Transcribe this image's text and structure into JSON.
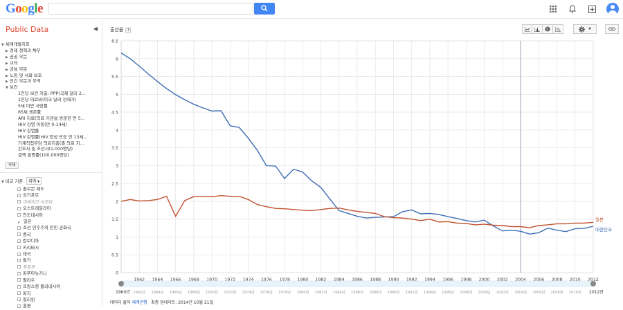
{
  "header": {
    "search_value": "",
    "logo_letters": [
      {
        "ch": "G",
        "color": "#4285f4"
      },
      {
        "ch": "o",
        "color": "#ea4335"
      },
      {
        "ch": "o",
        "color": "#fbbc05"
      },
      {
        "ch": "g",
        "color": "#4285f4"
      },
      {
        "ch": "l",
        "color": "#34a853"
      },
      {
        "ch": "e",
        "color": "#ea4335"
      }
    ],
    "icons": [
      "apps-icon",
      "notifications-icon",
      "share-plus-icon",
      "account-avatar-icon"
    ]
  },
  "sidebar": {
    "title": "Public Data",
    "root": "세계개발지표",
    "categories": [
      "경제 정책과 채무",
      "공공 부문",
      "교육",
      "금융 부문",
      "노동 및 사회 보호",
      "민간 부문과 무역",
      "보건"
    ],
    "indicators": [
      "1인당 보건 지출: PPP(국제 달러 2...",
      "1인당 의료비(미국 달러 현재가)",
      "5세 미만 사망률",
      "65세 생존률",
      "ARI 치료(의료 기관을 방문한 만 5...",
      "HIV 감염 아동(만 0-14세)",
      "HIV 감염률",
      "HIV 감염률(HIV 양성 반응 만 15세...",
      "가계직접부담 의료지출(총 의료 지...",
      "간호사 및 조산사(1,000명당)",
      "결핵 발병률(100,000명당)"
    ],
    "delete_label": "삭제",
    "compare_label": "비교 기준",
    "compare_select": "지역",
    "countries": [
      {
        "name": "솔로몬 제도",
        "checked": false,
        "gray": false
      },
      {
        "name": "싱가포르",
        "checked": false,
        "gray": false
      },
      {
        "name": "아메리칸 사모아",
        "checked": false,
        "gray": true
      },
      {
        "name": "오스트레일리아",
        "checked": false,
        "gray": false
      },
      {
        "name": "인도네시아",
        "checked": false,
        "gray": false
      },
      {
        "name": "일본",
        "checked": true,
        "gray": false
      },
      {
        "name": "조선 민주주의 인민 공화국",
        "checked": false,
        "gray": false
      },
      {
        "name": "중국",
        "checked": false,
        "gray": false
      },
      {
        "name": "캄보디아",
        "checked": false,
        "gray": false
      },
      {
        "name": "키리바시",
        "checked": false,
        "gray": false
      },
      {
        "name": "태국",
        "checked": false,
        "gray": false
      },
      {
        "name": "통가",
        "checked": false,
        "gray": false
      },
      {
        "name": "투발루",
        "checked": false,
        "gray": true
      },
      {
        "name": "파푸아뉴기니",
        "checked": false,
        "gray": false
      },
      {
        "name": "팔라우",
        "checked": false,
        "gray": false
      },
      {
        "name": "프랑스령 폴리네시아",
        "checked": false,
        "gray": false
      },
      {
        "name": "피지",
        "checked": false,
        "gray": false
      },
      {
        "name": "필리핀",
        "checked": false,
        "gray": false
      },
      {
        "name": "홍콩",
        "checked": false,
        "gray": false
      }
    ]
  },
  "main": {
    "title": "출산율",
    "help": "?",
    "source_label": "데이터 출처",
    "source_link": "세계은행",
    "updated": "최종 업데이트: 2014년 10월 21일"
  },
  "chart_data": {
    "type": "line",
    "title": "출산율",
    "ylim": [
      0,
      6.5
    ],
    "yticks": [
      0,
      0.5,
      1,
      1.5,
      2,
      2.5,
      3,
      3.5,
      4,
      4.5,
      5,
      5.5,
      6,
      6.5
    ],
    "xlim": [
      1960,
      2012
    ],
    "xticks": [
      1962,
      1964,
      1966,
      1968,
      1970,
      1972,
      1974,
      1976,
      1978,
      1980,
      1982,
      1984,
      1986,
      1988,
      1990,
      1992,
      1994,
      1996,
      1998,
      2000,
      2002,
      2004,
      2006,
      2008,
      2010,
      2012
    ],
    "grid": true,
    "legend_placement": "right-end",
    "slider_start": "1960년",
    "slider_end": "2012년",
    "series": [
      {
        "name": "대한민국",
        "color": "#3d6db5",
        "x": [
          1960,
          1961,
          1962,
          1963,
          1964,
          1965,
          1966,
          1967,
          1968,
          1969,
          1970,
          1971,
          1972,
          1973,
          1974,
          1975,
          1976,
          1977,
          1978,
          1979,
          1980,
          1981,
          1982,
          1983,
          1984,
          1985,
          1986,
          1987,
          1988,
          1989,
          1990,
          1991,
          1992,
          1993,
          1994,
          1995,
          1996,
          1997,
          1998,
          1999,
          2000,
          2001,
          2002,
          2003,
          2004,
          2005,
          2006,
          2007,
          2008,
          2009,
          2010,
          2011,
          2012
        ],
        "values": [
          6.16,
          6.0,
          5.79,
          5.57,
          5.36,
          5.16,
          4.99,
          4.85,
          4.72,
          4.62,
          4.53,
          4.54,
          4.12,
          4.07,
          3.77,
          3.43,
          3.0,
          2.99,
          2.64,
          2.9,
          2.82,
          2.57,
          2.39,
          2.06,
          1.74,
          1.66,
          1.58,
          1.53,
          1.55,
          1.56,
          1.57,
          1.71,
          1.76,
          1.65,
          1.66,
          1.63,
          1.57,
          1.52,
          1.46,
          1.42,
          1.47,
          1.31,
          1.17,
          1.19,
          1.16,
          1.08,
          1.12,
          1.25,
          1.19,
          1.15,
          1.23,
          1.24,
          1.3
        ]
      },
      {
        "name": "일본",
        "color": "#c0502d",
        "x": [
          1960,
          1961,
          1962,
          1963,
          1964,
          1965,
          1966,
          1967,
          1968,
          1969,
          1970,
          1971,
          1972,
          1973,
          1974,
          1975,
          1976,
          1977,
          1978,
          1979,
          1980,
          1981,
          1982,
          1983,
          1984,
          1985,
          1986,
          1987,
          1988,
          1989,
          1990,
          1991,
          1992,
          1993,
          1994,
          1995,
          1996,
          1997,
          1998,
          1999,
          2000,
          2001,
          2002,
          2003,
          2004,
          2005,
          2006,
          2007,
          2008,
          2009,
          2010,
          2011,
          2012
        ],
        "values": [
          2.0,
          2.05,
          2.01,
          2.02,
          2.05,
          2.14,
          1.58,
          2.02,
          2.13,
          2.13,
          2.13,
          2.16,
          2.14,
          2.14,
          2.05,
          1.91,
          1.85,
          1.8,
          1.79,
          1.77,
          1.75,
          1.74,
          1.77,
          1.8,
          1.81,
          1.76,
          1.72,
          1.69,
          1.66,
          1.57,
          1.54,
          1.53,
          1.5,
          1.46,
          1.5,
          1.42,
          1.43,
          1.39,
          1.38,
          1.34,
          1.36,
          1.33,
          1.32,
          1.29,
          1.29,
          1.26,
          1.32,
          1.34,
          1.37,
          1.37,
          1.39,
          1.39,
          1.41
        ]
      }
    ]
  }
}
